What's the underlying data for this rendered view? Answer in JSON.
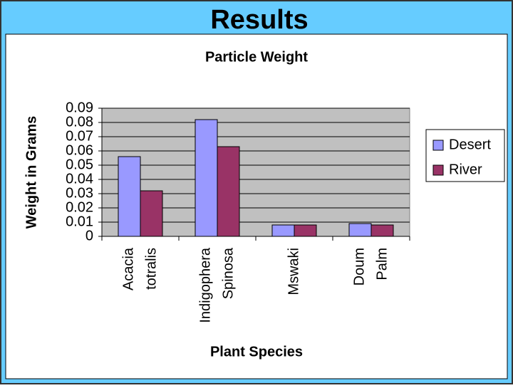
{
  "chart_data": {
    "type": "bar",
    "slide_title": "Results",
    "title": "Particle Weight",
    "x_label": "Plant Species",
    "y_label": "Weight in Grams",
    "categories": [
      [
        "Acacia",
        "totralis"
      ],
      [
        "Indigophera",
        "Spinosa"
      ],
      [
        "Mswaki"
      ],
      [
        "Doum",
        "Palm"
      ]
    ],
    "series": [
      {
        "name": "Desert",
        "color": "#9999ff",
        "values": [
          0.056,
          0.082,
          0.008,
          0.009
        ]
      },
      {
        "name": "River",
        "color": "#993366",
        "values": [
          0.032,
          0.063,
          0.008,
          0.008
        ]
      }
    ],
    "ylim": [
      0,
      0.09
    ],
    "yticks": [
      0,
      0.01,
      0.02,
      0.03,
      0.04,
      0.05,
      0.06,
      0.07,
      0.08,
      0.09
    ],
    "grid": true,
    "legend": "right"
  }
}
